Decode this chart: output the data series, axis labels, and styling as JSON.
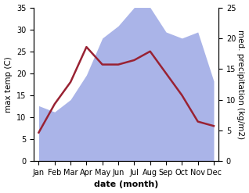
{
  "months": [
    "Jan",
    "Feb",
    "Mar",
    "Apr",
    "May",
    "Jun",
    "Jul",
    "Aug",
    "Sep",
    "Oct",
    "Nov",
    "Dec"
  ],
  "temperature": [
    6.5,
    13.0,
    18.0,
    26.0,
    22.0,
    22.0,
    23.0,
    25.0,
    20.0,
    15.0,
    9.0,
    8.0
  ],
  "precipitation": [
    9,
    8,
    10,
    14,
    20,
    22,
    25,
    25,
    21,
    20,
    21,
    13
  ],
  "temp_color": "#992233",
  "precip_color": "#aab4e8",
  "title": "",
  "xlabel": "date (month)",
  "ylabel_left": "max temp (C)",
  "ylabel_right": "med. precipitation (kg/m2)",
  "ylim_left": [
    0,
    35
  ],
  "ylim_right": [
    0,
    25
  ],
  "yticks_left": [
    0,
    5,
    10,
    15,
    20,
    25,
    30,
    35
  ],
  "yticks_right": [
    0,
    5,
    10,
    15,
    20,
    25
  ],
  "bg_color": "#ffffff",
  "temp_linewidth": 1.8,
  "xlabel_fontsize": 8,
  "ylabel_fontsize": 7.5
}
